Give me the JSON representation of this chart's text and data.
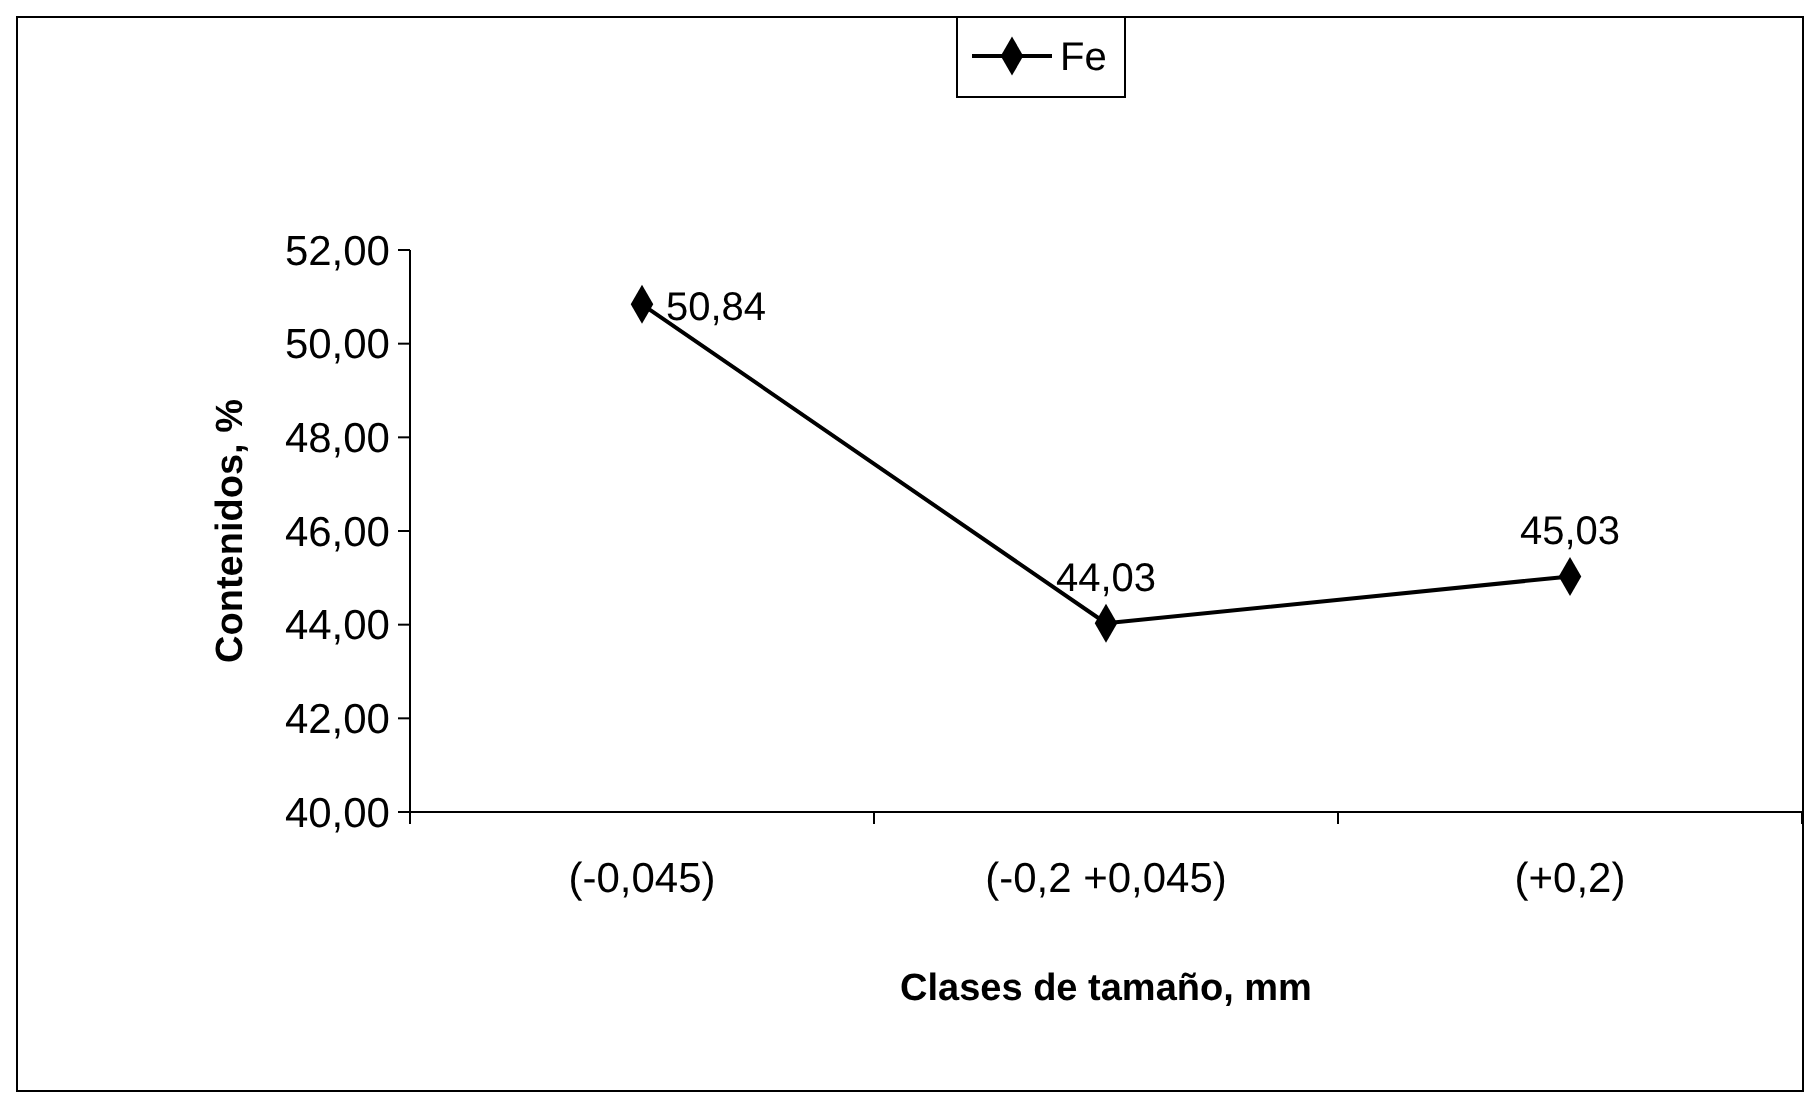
{
  "chart_data": {
    "type": "line",
    "xlabel": "Clases de tamaño, mm",
    "ylabel": "Contenidos, %",
    "categories": [
      "(-0,045)",
      "(-0,2 +0,045)",
      "(+0,2)"
    ],
    "series": [
      {
        "name": "Fe",
        "color": "#000000",
        "values": [
          50.84,
          44.03,
          45.03
        ],
        "value_labels": [
          "50,84",
          "44,03",
          "45,03"
        ]
      }
    ],
    "ylim": [
      40,
      52
    ],
    "yticks": [
      {
        "value": 40,
        "label": "40,00"
      },
      {
        "value": 42,
        "label": "42,00"
      },
      {
        "value": 44,
        "label": "44,00"
      },
      {
        "value": 46,
        "label": "46,00"
      },
      {
        "value": 48,
        "label": "48,00"
      },
      {
        "value": 50,
        "label": "50,00"
      },
      {
        "value": 52,
        "label": "52,00"
      }
    ],
    "legend": "top",
    "marker": "diamond",
    "line_style": "solid",
    "grid": false
  }
}
